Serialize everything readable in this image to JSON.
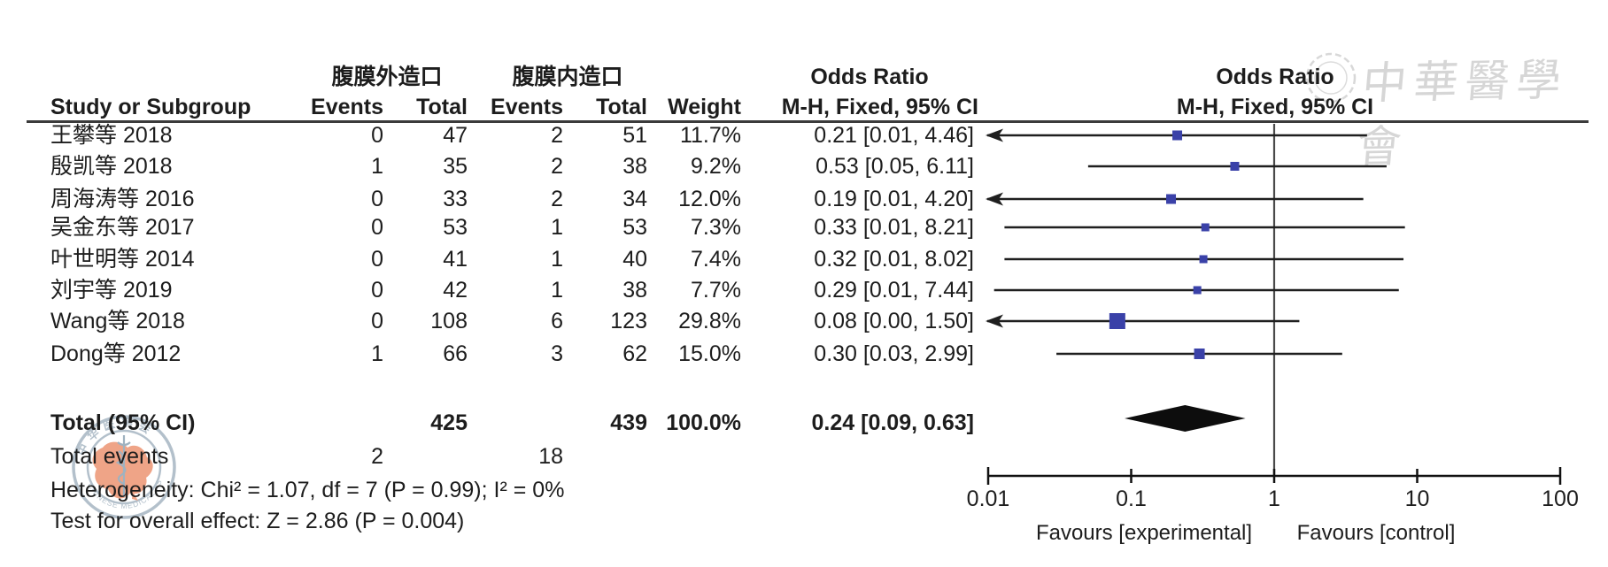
{
  "header": {
    "col_study": "Study or Subgroup",
    "group_experimental": "腹膜外造口",
    "group_control": "腹膜内造口",
    "col_events": "Events",
    "col_total": "Total",
    "col_weight": "Weight",
    "or_title": "Odds Ratio",
    "or_method": "M-H, Fixed, 95% CI"
  },
  "watermark": {
    "calligraphy": "中華醫學會",
    "stamp_arc_top": "中华医学会",
    "stamp_arc_bottom": "CHINESE MEDICAL ASSOCIATION"
  },
  "colors": {
    "square_blue": "#3a41a8",
    "ci_line": "#1f1f1f",
    "null_line": "#4a4a4a",
    "diamond": "#0d0d0d",
    "stamp_ring": "#b3c0cb",
    "stamp_map": "#efa487",
    "watermark_gray": "#d6d6d6"
  },
  "chart_data": {
    "type": "forest",
    "x_scale": "log",
    "x_tick_labels": [
      "0.01",
      "0.1",
      "1",
      "10",
      "100"
    ],
    "x_tick_values": [
      0.01,
      0.1,
      1,
      10,
      100
    ],
    "xlim": [
      0.01,
      100
    ],
    "null_line": 1,
    "favours_left": "Favours [experimental]",
    "favours_right": "Favours [control]",
    "studies": [
      {
        "label": "王攀等 2018",
        "events_exp": 0,
        "total_exp": 47,
        "events_ctrl": 2,
        "total_ctrl": 51,
        "weight": "11.7%",
        "weight_pct": 11.7,
        "or_text": "0.21 [0.01, 4.46]",
        "or": 0.21,
        "ci_low": 0.01,
        "ci_high": 4.46,
        "ci_low_plot": 0.01,
        "arrow_low": true
      },
      {
        "label": "殷凯等 2018",
        "events_exp": 1,
        "total_exp": 35,
        "events_ctrl": 2,
        "total_ctrl": 38,
        "weight": "9.2%",
        "weight_pct": 9.2,
        "or_text": "0.53 [0.05, 6.11]",
        "or": 0.53,
        "ci_low": 0.05,
        "ci_high": 6.11,
        "ci_low_plot": 0.05,
        "arrow_low": false
      },
      {
        "label": "周海涛等 2016",
        "events_exp": 0,
        "total_exp": 33,
        "events_ctrl": 2,
        "total_ctrl": 34,
        "weight": "12.0%",
        "weight_pct": 12.0,
        "or_text": "0.19 [0.01, 4.20]",
        "or": 0.19,
        "ci_low": 0.01,
        "ci_high": 4.2,
        "ci_low_plot": 0.01,
        "arrow_low": true
      },
      {
        "label": "吴金东等 2017",
        "events_exp": 0,
        "total_exp": 53,
        "events_ctrl": 1,
        "total_ctrl": 53,
        "weight": "7.3%",
        "weight_pct": 7.3,
        "or_text": "0.33 [0.01, 8.21]",
        "or": 0.33,
        "ci_low": 0.01,
        "ci_high": 8.21,
        "ci_low_plot": 0.013,
        "arrow_low": false
      },
      {
        "label": "叶世明等 2014",
        "events_exp": 0,
        "total_exp": 41,
        "events_ctrl": 1,
        "total_ctrl": 40,
        "weight": "7.4%",
        "weight_pct": 7.4,
        "or_text": "0.32 [0.01, 8.02]",
        "or": 0.32,
        "ci_low": 0.01,
        "ci_high": 8.02,
        "ci_low_plot": 0.013,
        "arrow_low": false
      },
      {
        "label": "刘宇等 2019",
        "events_exp": 0,
        "total_exp": 42,
        "events_ctrl": 1,
        "total_ctrl": 38,
        "weight": "7.7%",
        "weight_pct": 7.7,
        "or_text": "0.29 [0.01, 7.44]",
        "or": 0.29,
        "ci_low": 0.01,
        "ci_high": 7.44,
        "ci_low_plot": 0.011,
        "arrow_low": false
      },
      {
        "label": "Wang等 2018",
        "events_exp": 0,
        "total_exp": 108,
        "events_ctrl": 6,
        "total_ctrl": 123,
        "weight": "29.8%",
        "weight_pct": 29.8,
        "or_text": "0.08 [0.00, 1.50]",
        "or": 0.08,
        "ci_low": 0.0,
        "ci_high": 1.5,
        "ci_low_plot": 0.01,
        "arrow_low": true
      },
      {
        "label": "Dong等 2012",
        "events_exp": 1,
        "total_exp": 66,
        "events_ctrl": 3,
        "total_ctrl": 62,
        "weight": "15.0%",
        "weight_pct": 15.0,
        "or_text": "0.30 [0.03, 2.99]",
        "or": 0.3,
        "ci_low": 0.03,
        "ci_high": 2.99,
        "ci_low_plot": 0.03,
        "arrow_low": false
      }
    ],
    "total": {
      "label": "Total (95% CI)",
      "total_exp": 425,
      "total_ctrl": 439,
      "weight": "100.0%",
      "or_text": "0.24 [0.09, 0.63]",
      "or": 0.24,
      "ci_low": 0.09,
      "ci_high": 0.63
    },
    "total_events": {
      "label": "Total events",
      "exp": 2,
      "ctrl": 18
    },
    "heterogeneity": "Heterogeneity: Chi² = 1.07, df = 7 (P = 0.99); I² = 0%",
    "overall_effect": "Test for overall effect: Z = 2.86 (P = 0.004)"
  }
}
